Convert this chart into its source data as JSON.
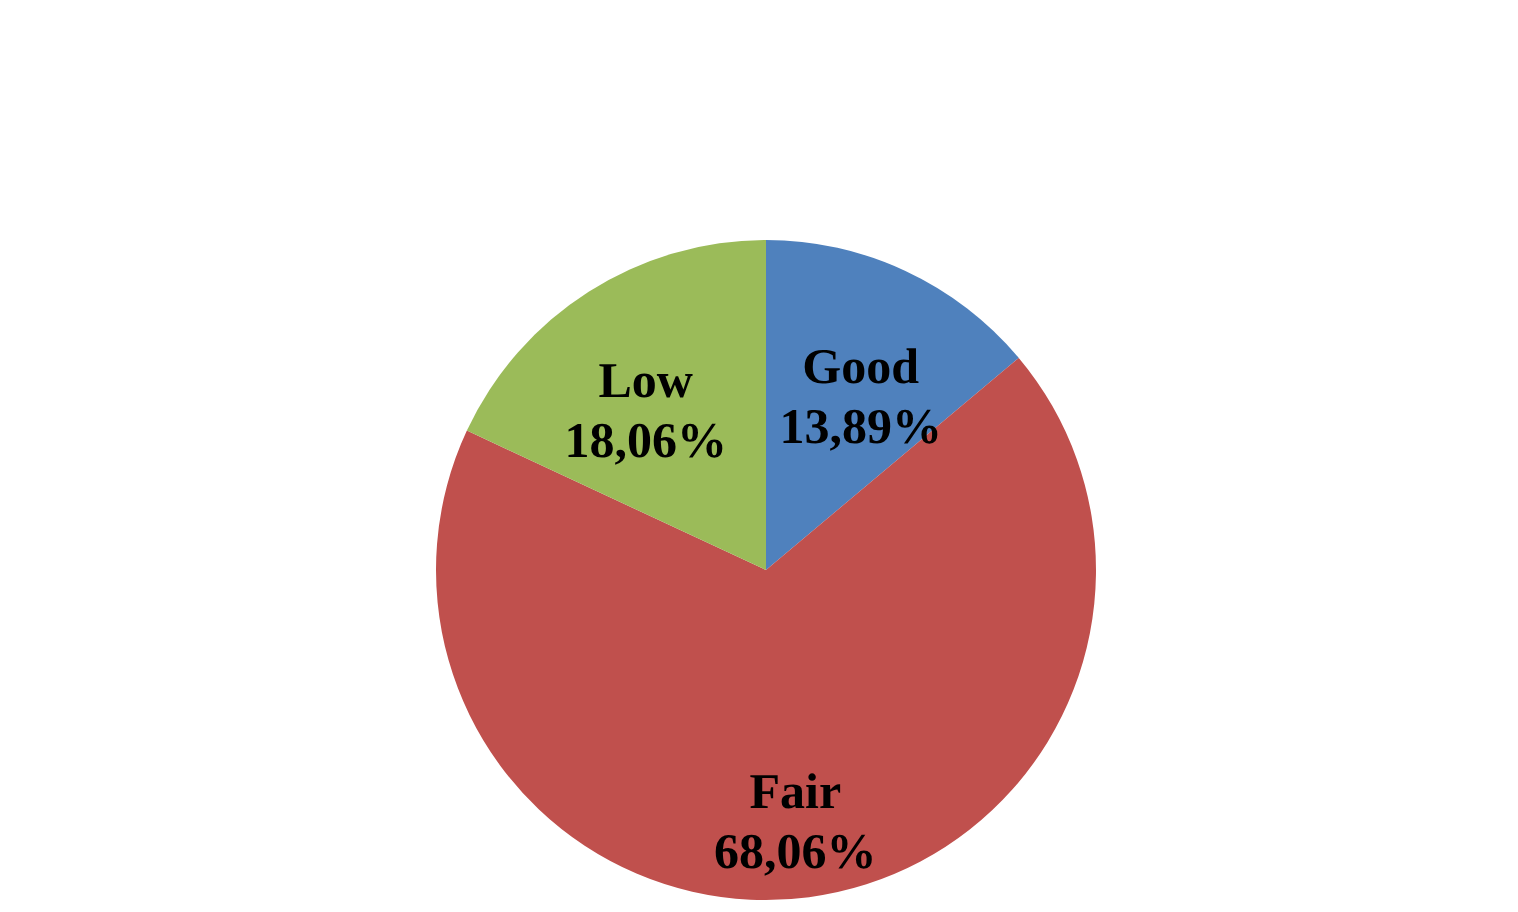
{
  "chart_data": {
    "type": "pie",
    "categories": [
      "Good",
      "Fair",
      "Low"
    ],
    "values": [
      13.89,
      68.06,
      18.06
    ],
    "value_labels": [
      "13,89%",
      "68,06%",
      "18,06%"
    ],
    "colors": [
      "#4f81bd",
      "#c0504d",
      "#9bbb59"
    ]
  }
}
